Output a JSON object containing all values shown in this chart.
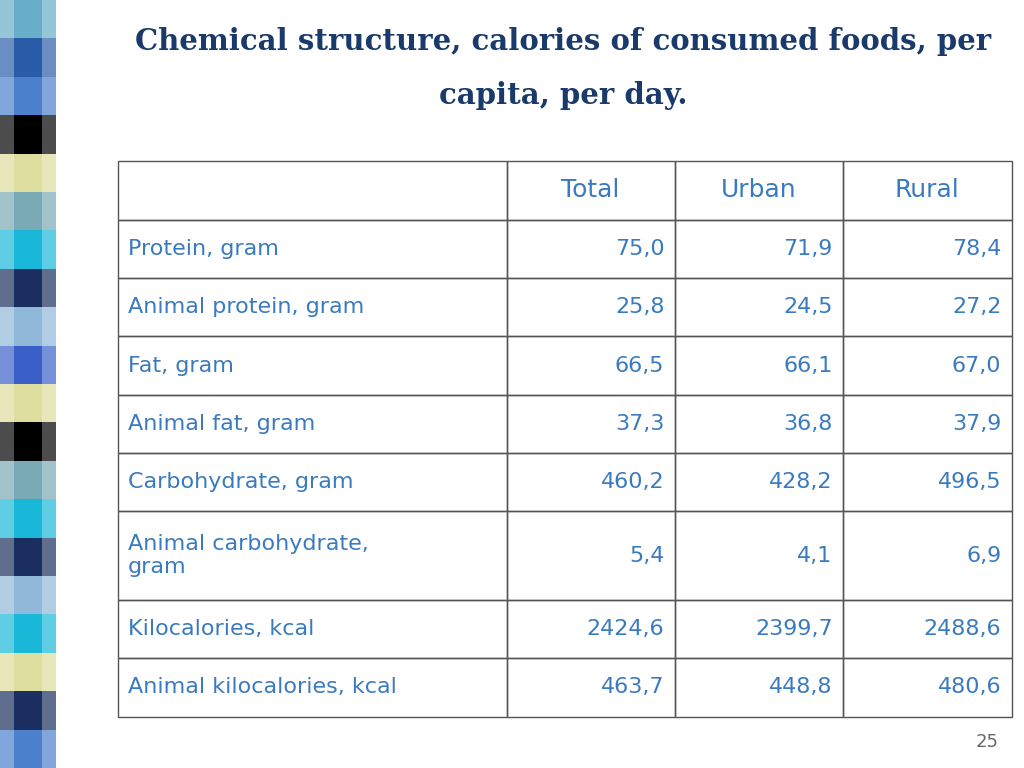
{
  "title_line1": "Chemical structure, calories of consumed foods, per",
  "title_line2": "capita, per day.",
  "title_color": "#1a3a6b",
  "table_text_color": "#3a7bbf",
  "header_row": [
    "",
    "Total",
    "Urban",
    "Rural"
  ],
  "rows": [
    [
      "Protein, gram",
      "75,0",
      "71,9",
      "78,4"
    ],
    [
      "Animal protein, gram",
      "25,8",
      "24,5",
      "27,2"
    ],
    [
      "Fat, gram",
      "66,5",
      "66,1",
      "67,0"
    ],
    [
      "Animal fat, gram",
      "37,3",
      "36,8",
      "37,9"
    ],
    [
      "Carbohydrate, gram",
      "460,2",
      "428,2",
      "496,5"
    ],
    [
      "Animal carbohydrate,\ngram",
      "5,4",
      "4,1",
      "6,9"
    ],
    [
      "Kilocalories, kcal",
      "2424,6",
      "2399,7",
      "2488,6"
    ],
    [
      "Animal kilocalories, kcal",
      "463,7",
      "448,8",
      "480,6"
    ]
  ],
  "page_number": "25",
  "background_color": "#ffffff",
  "side_bar_colors": [
    "#68aec8",
    "#2a5da8",
    "#4a80cc",
    "#000000",
    "#dede9e",
    "#7aaab5",
    "#1ab8d8",
    "#1a2f60",
    "#90b8d8",
    "#3a60c8",
    "#dede9e",
    "#000000",
    "#7aaab5",
    "#1ab8d8",
    "#1a2f60",
    "#90b8d8",
    "#1ab8d8",
    "#dede9e",
    "#1a2f60",
    "#4a80cc"
  ]
}
